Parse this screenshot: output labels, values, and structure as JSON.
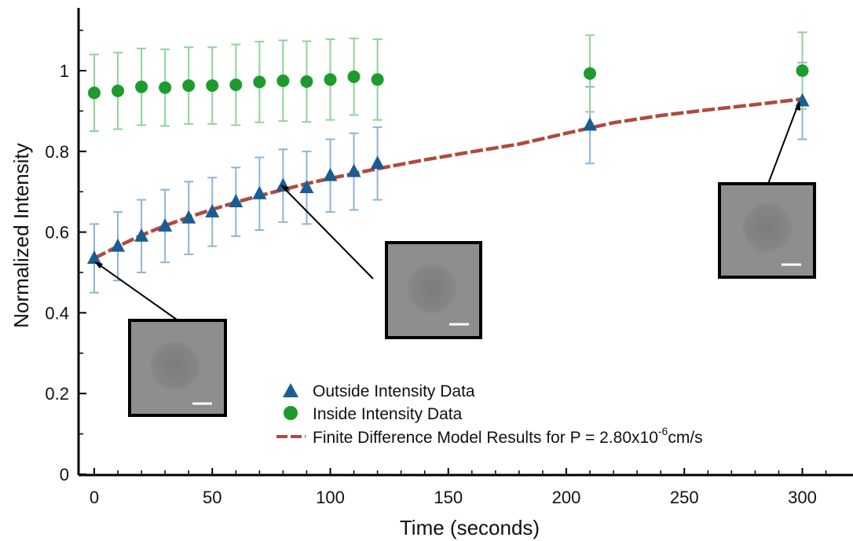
{
  "chart_data": {
    "type": "scatter",
    "xlabel": "Time (seconds)",
    "ylabel": "Normalized Intensity",
    "xlim": [
      -5,
      320
    ],
    "ylim": [
      0,
      1.15
    ],
    "x_ticks": [
      "0",
      "50",
      "100",
      "150",
      "200",
      "250",
      "300"
    ],
    "y_ticks": [
      "0",
      "0.2",
      "0.4",
      "0.6",
      "0.8",
      "1"
    ],
    "legend": {
      "position": "bottom-right",
      "entries": [
        {
          "label": "Outside Intensity Data",
          "marker": "triangle",
          "color": "#1b5c93"
        },
        {
          "label": "Inside Intensity Data",
          "marker": "circle",
          "color": "#1e9a2e"
        },
        {
          "label_prefix": "Finite Difference Model Results for P = 2.80x10",
          "label_sup": "-6",
          "label_suffix": "cm/s",
          "marker": "dashed-line",
          "color": "#b04a3e"
        }
      ]
    },
    "series": [
      {
        "name": "Outside Intensity Data",
        "marker": "triangle",
        "color": "#1b5c93",
        "error_color": "#8fb3d4",
        "x": [
          0,
          10,
          20,
          30,
          40,
          50,
          60,
          70,
          80,
          90,
          100,
          110,
          120,
          210,
          300
        ],
        "y": [
          0.535,
          0.565,
          0.59,
          0.615,
          0.635,
          0.65,
          0.675,
          0.695,
          0.715,
          0.71,
          0.74,
          0.75,
          0.77,
          0.865,
          0.925
        ],
        "err": [
          0.085,
          0.085,
          0.09,
          0.09,
          0.09,
          0.085,
          0.085,
          0.09,
          0.09,
          0.09,
          0.09,
          0.095,
          0.09,
          0.095,
          0.095
        ]
      },
      {
        "name": "Inside Intensity Data",
        "marker": "circle",
        "color": "#1e9a2e",
        "error_color": "#8fd39a",
        "x": [
          0,
          10,
          20,
          30,
          40,
          50,
          60,
          70,
          80,
          90,
          100,
          110,
          120,
          210,
          300
        ],
        "y": [
          0.945,
          0.95,
          0.96,
          0.958,
          0.963,
          0.963,
          0.965,
          0.972,
          0.975,
          0.973,
          0.978,
          0.985,
          0.978,
          0.993,
          1.0
        ],
        "err": [
          0.095,
          0.095,
          0.095,
          0.095,
          0.095,
          0.095,
          0.1,
          0.1,
          0.1,
          0.1,
          0.1,
          0.095,
          0.1,
          0.095,
          0.095
        ]
      },
      {
        "name": "Finite Difference Model Results for P = 2.80x10-6cm/s",
        "type": "line",
        "style": "dashed",
        "color": "#b04a3e",
        "x": [
          0,
          10,
          20,
          30,
          40,
          50,
          60,
          70,
          80,
          90,
          100,
          120,
          140,
          160,
          180,
          200,
          220,
          240,
          260,
          280,
          300
        ],
        "y": [
          0.535,
          0.565,
          0.592,
          0.616,
          0.637,
          0.656,
          0.674,
          0.69,
          0.705,
          0.72,
          0.733,
          0.757,
          0.779,
          0.799,
          0.818,
          0.845,
          0.871,
          0.889,
          0.903,
          0.916,
          0.93
        ]
      }
    ],
    "insets": [
      {
        "image": "microscopy-inset-t0",
        "points_to": [
          0,
          0.535
        ]
      },
      {
        "image": "microscopy-inset-t80",
        "points_to": [
          80,
          0.715
        ]
      },
      {
        "image": "microscopy-inset-t300",
        "points_to": [
          300,
          0.925
        ]
      }
    ]
  }
}
